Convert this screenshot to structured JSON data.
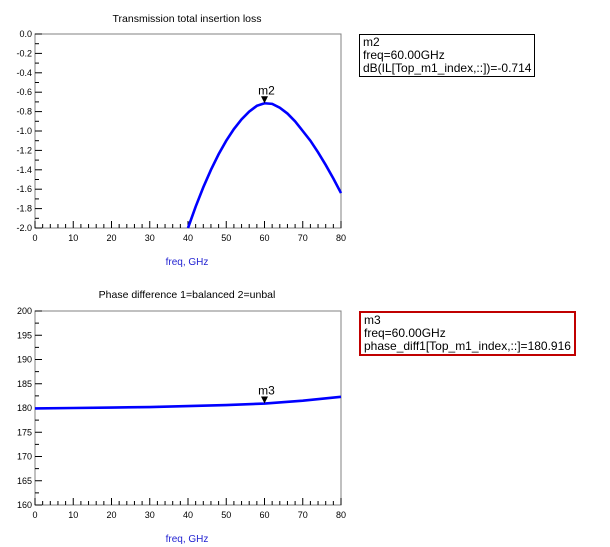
{
  "chart_data": [
    {
      "type": "line",
      "title": "Transmission total insertion loss",
      "xlabel": "freq, GHz",
      "ylabel": "",
      "xlim": [
        0,
        80
      ],
      "ylim": [
        -2.0,
        0.0
      ],
      "xticks": [
        0,
        10,
        20,
        30,
        40,
        50,
        60,
        70,
        80
      ],
      "yticks": [
        0.0,
        -0.2,
        -0.4,
        -0.6,
        -0.8,
        -1.0,
        -1.2,
        -1.4,
        -1.6,
        -1.8,
        -2.0
      ],
      "ytick_labels": [
        "0.0",
        "-0.2",
        "-0.4",
        "-0.6",
        "-0.8",
        "-1.0",
        "-1.2",
        "-1.4",
        "-1.6",
        "-1.8",
        "-2.0"
      ],
      "series": [
        {
          "color": "#0000ff",
          "x": [
            40,
            42,
            44,
            46,
            48,
            50,
            52,
            54,
            56,
            58,
            60,
            62,
            64,
            66,
            68,
            70,
            72,
            74,
            76,
            78,
            80
          ],
          "y": [
            -2.0,
            -1.78,
            -1.58,
            -1.4,
            -1.24,
            -1.1,
            -0.98,
            -0.88,
            -0.8,
            -0.74,
            -0.714,
            -0.72,
            -0.76,
            -0.82,
            -0.9,
            -1.0,
            -1.1,
            -1.22,
            -1.35,
            -1.49,
            -1.64
          ]
        }
      ],
      "marker": {
        "name": "m2",
        "x": 60,
        "y": -0.714
      },
      "readout": {
        "lines": [
          "m2",
          "freq=60.00GHz",
          "dB(IL[Top_m1_index,::])=-0.714"
        ],
        "border": "#000000"
      }
    },
    {
      "type": "line",
      "title": "Phase difference 1=balanced 2=unbal",
      "xlabel": "freq, GHz",
      "ylabel": "",
      "xlim": [
        0,
        80
      ],
      "ylim": [
        160,
        200
      ],
      "xticks": [
        0,
        10,
        20,
        30,
        40,
        50,
        60,
        70,
        80
      ],
      "yticks": [
        200,
        195,
        190,
        185,
        180,
        175,
        170,
        165,
        160
      ],
      "ytick_labels": [
        "200",
        "195",
        "190",
        "185",
        "180",
        "175",
        "170",
        "165",
        "160"
      ],
      "series": [
        {
          "color": "#0000ff",
          "x": [
            0,
            10,
            20,
            30,
            40,
            50,
            60,
            70,
            80
          ],
          "y": [
            179.9,
            180.0,
            180.1,
            180.2,
            180.4,
            180.6,
            180.916,
            181.5,
            182.3
          ]
        }
      ],
      "marker": {
        "name": "m3",
        "x": 60,
        "y": 180.916
      },
      "readout": {
        "lines": [
          "m3",
          "freq=60.00GHz",
          "phase_diff1[Top_m1_index,::]=180.916"
        ],
        "border": "#c00000"
      }
    }
  ]
}
